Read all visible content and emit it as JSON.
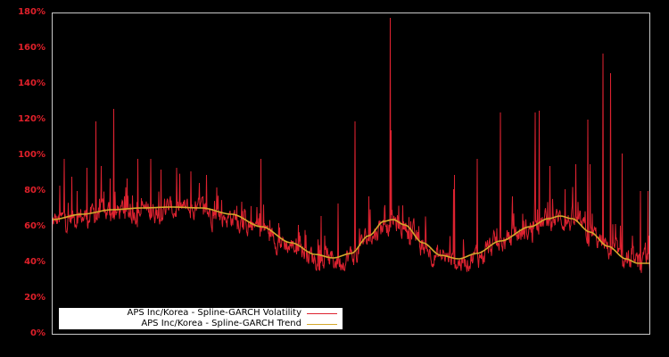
{
  "chart_data": {
    "type": "line",
    "title": "",
    "xlabel": "",
    "ylabel": "",
    "ylim": [
      0,
      180
    ],
    "y_ticks": [
      "0%",
      "20%",
      "40%",
      "60%",
      "80%",
      "100%",
      "120%",
      "140%",
      "160%",
      "180%"
    ],
    "y_tick_values": [
      0,
      20,
      40,
      60,
      80,
      100,
      120,
      140,
      160,
      180
    ],
    "x_ticks": [],
    "grid": false,
    "legend_position": "lower left",
    "series": [
      {
        "name": "APS Inc/Korea - Spline-GARCH Volatility",
        "color": "#dd2230",
        "description": "Daily conditional volatility (%), noisy series around trend with spikes",
        "spikes": [
          {
            "x_frac": 0.0,
            "value": 56
          },
          {
            "x_frac": 0.013,
            "value": 83
          },
          {
            "x_frac": 0.02,
            "value": 98
          },
          {
            "x_frac": 0.033,
            "value": 88
          },
          {
            "x_frac": 0.042,
            "value": 80
          },
          {
            "x_frac": 0.058,
            "value": 93
          },
          {
            "x_frac": 0.073,
            "value": 119
          },
          {
            "x_frac": 0.082,
            "value": 94
          },
          {
            "x_frac": 0.097,
            "value": 87
          },
          {
            "x_frac": 0.103,
            "value": 126
          },
          {
            "x_frac": 0.125,
            "value": 87
          },
          {
            "x_frac": 0.143,
            "value": 98
          },
          {
            "x_frac": 0.165,
            "value": 98
          },
          {
            "x_frac": 0.182,
            "value": 92
          },
          {
            "x_frac": 0.208,
            "value": 93
          },
          {
            "x_frac": 0.232,
            "value": 91
          },
          {
            "x_frac": 0.258,
            "value": 89
          },
          {
            "x_frac": 0.275,
            "value": 82
          },
          {
            "x_frac": 0.322,
            "value": 70
          },
          {
            "x_frac": 0.349,
            "value": 98
          },
          {
            "x_frac": 0.379,
            "value": 62
          },
          {
            "x_frac": 0.412,
            "value": 61
          },
          {
            "x_frac": 0.45,
            "value": 66
          },
          {
            "x_frac": 0.478,
            "value": 73
          },
          {
            "x_frac": 0.507,
            "value": 119
          },
          {
            "x_frac": 0.53,
            "value": 77
          },
          {
            "x_frac": 0.566,
            "value": 177
          },
          {
            "x_frac": 0.567,
            "value": 114
          },
          {
            "x_frac": 0.6,
            "value": 63
          },
          {
            "x_frac": 0.672,
            "value": 81
          },
          {
            "x_frac": 0.673,
            "value": 89
          },
          {
            "x_frac": 0.711,
            "value": 98
          },
          {
            "x_frac": 0.75,
            "value": 124
          },
          {
            "x_frac": 0.77,
            "value": 77
          },
          {
            "x_frac": 0.808,
            "value": 124
          },
          {
            "x_frac": 0.815,
            "value": 125
          },
          {
            "x_frac": 0.833,
            "value": 94
          },
          {
            "x_frac": 0.858,
            "value": 81
          },
          {
            "x_frac": 0.876,
            "value": 95
          },
          {
            "x_frac": 0.896,
            "value": 120
          },
          {
            "x_frac": 0.9,
            "value": 95
          },
          {
            "x_frac": 0.922,
            "value": 157
          },
          {
            "x_frac": 0.934,
            "value": 146
          },
          {
            "x_frac": 0.954,
            "value": 101
          },
          {
            "x_frac": 0.984,
            "value": 80
          },
          {
            "x_frac": 0.997,
            "value": 80
          }
        ],
        "approx_floor_offset": -9
      },
      {
        "name": "APS Inc/Korea - Spline-GARCH Trend",
        "color": "#d4a82c",
        "points": [
          {
            "x_frac": 0.0,
            "value": 64
          },
          {
            "x_frac": 0.05,
            "value": 67
          },
          {
            "x_frac": 0.1,
            "value": 69.5
          },
          {
            "x_frac": 0.15,
            "value": 70.5
          },
          {
            "x_frac": 0.2,
            "value": 71
          },
          {
            "x_frac": 0.25,
            "value": 70.5
          },
          {
            "x_frac": 0.3,
            "value": 67
          },
          {
            "x_frac": 0.35,
            "value": 60
          },
          {
            "x_frac": 0.4,
            "value": 51
          },
          {
            "x_frac": 0.44,
            "value": 44.5
          },
          {
            "x_frac": 0.47,
            "value": 42.5
          },
          {
            "x_frac": 0.5,
            "value": 45
          },
          {
            "x_frac": 0.53,
            "value": 55
          },
          {
            "x_frac": 0.555,
            "value": 63
          },
          {
            "x_frac": 0.57,
            "value": 64
          },
          {
            "x_frac": 0.59,
            "value": 61
          },
          {
            "x_frac": 0.62,
            "value": 51
          },
          {
            "x_frac": 0.65,
            "value": 44
          },
          {
            "x_frac": 0.68,
            "value": 42
          },
          {
            "x_frac": 0.71,
            "value": 45
          },
          {
            "x_frac": 0.75,
            "value": 52
          },
          {
            "x_frac": 0.8,
            "value": 60
          },
          {
            "x_frac": 0.83,
            "value": 64.5
          },
          {
            "x_frac": 0.85,
            "value": 66
          },
          {
            "x_frac": 0.87,
            "value": 64.5
          },
          {
            "x_frac": 0.9,
            "value": 57
          },
          {
            "x_frac": 0.93,
            "value": 49
          },
          {
            "x_frac": 0.96,
            "value": 42
          },
          {
            "x_frac": 0.98,
            "value": 39.5
          },
          {
            "x_frac": 1.0,
            "value": 39.5
          }
        ]
      }
    ]
  },
  "legend": {
    "items": [
      {
        "label": "APS Inc/Korea - Spline-GARCH Volatility",
        "color": "#dd2230"
      },
      {
        "label": "APS Inc/Korea - Spline-GARCH Trend",
        "color": "#d4a82c"
      }
    ]
  },
  "style": {
    "background": "#000000",
    "frame_color": "#c8c8c8",
    "tick_label_color": "#e0202a"
  }
}
